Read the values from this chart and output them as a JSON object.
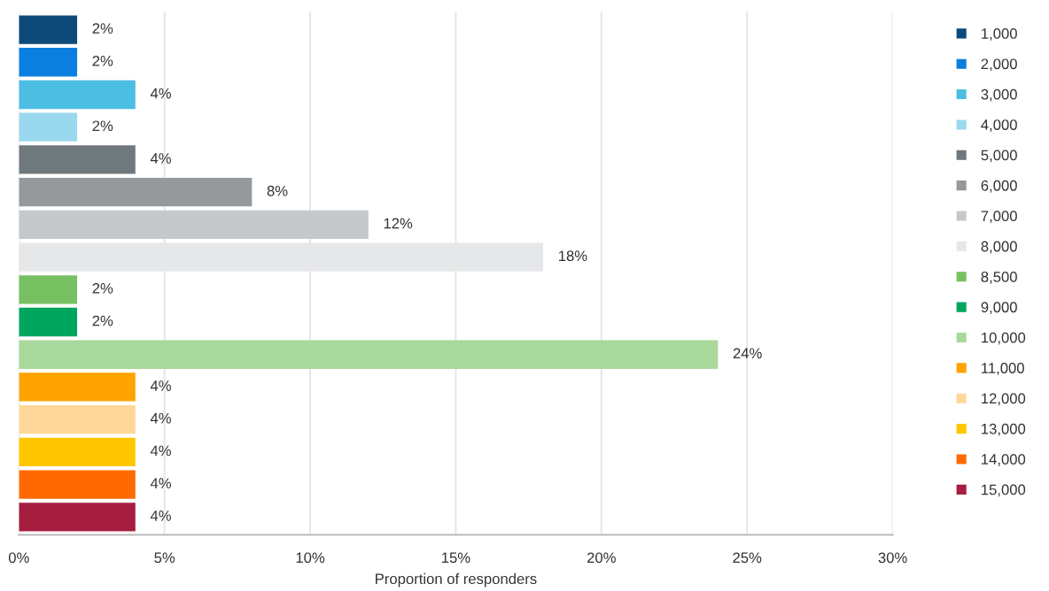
{
  "chart_data": {
    "type": "bar",
    "orientation": "horizontal",
    "xlabel": "Proportion of responders",
    "categories": [
      null,
      null,
      null,
      null,
      null,
      null,
      null,
      null,
      null,
      null,
      null,
      null,
      null,
      null,
      null,
      null
    ],
    "series": [
      {
        "name": "1,000",
        "color": "#0d4a7a",
        "values": [
          2,
          null,
          null,
          null,
          null,
          null,
          null,
          null,
          null,
          null,
          null,
          null,
          null,
          null,
          null,
          null
        ],
        "value_labels": [
          "2%",
          null,
          null,
          null,
          null,
          null,
          null,
          null,
          null,
          null,
          null,
          null,
          null,
          null,
          null,
          null
        ]
      },
      {
        "name": "2,000",
        "color": "#0a7fe0",
        "values": [
          null,
          2,
          null,
          null,
          null,
          null,
          null,
          null,
          null,
          null,
          null,
          null,
          null,
          null,
          null,
          null
        ],
        "value_labels": [
          null,
          "2%",
          null,
          null,
          null,
          null,
          null,
          null,
          null,
          null,
          null,
          null,
          null,
          null,
          null,
          null
        ]
      },
      {
        "name": "3,000",
        "color": "#4cbde3",
        "values": [
          null,
          null,
          4,
          null,
          null,
          null,
          null,
          null,
          null,
          null,
          null,
          null,
          null,
          null,
          null,
          null
        ],
        "value_labels": [
          null,
          null,
          "4%",
          null,
          null,
          null,
          null,
          null,
          null,
          null,
          null,
          null,
          null,
          null,
          null,
          null
        ]
      },
      {
        "name": "4,000",
        "color": "#9ad8ef",
        "values": [
          null,
          null,
          null,
          2,
          null,
          null,
          null,
          null,
          null,
          null,
          null,
          null,
          null,
          null,
          null,
          null
        ],
        "value_labels": [
          null,
          null,
          null,
          "2%",
          null,
          null,
          null,
          null,
          null,
          null,
          null,
          null,
          null,
          null,
          null,
          null
        ]
      },
      {
        "name": "5,000",
        "color": "#6f787d",
        "values": [
          null,
          null,
          null,
          null,
          4,
          null,
          null,
          null,
          null,
          null,
          null,
          null,
          null,
          null,
          null,
          null
        ],
        "value_labels": [
          null,
          null,
          null,
          null,
          "4%",
          null,
          null,
          null,
          null,
          null,
          null,
          null,
          null,
          null,
          null,
          null
        ]
      },
      {
        "name": "6,000",
        "color": "#95999c",
        "values": [
          null,
          null,
          null,
          null,
          null,
          8,
          null,
          null,
          null,
          null,
          null,
          null,
          null,
          null,
          null,
          null
        ],
        "value_labels": [
          null,
          null,
          null,
          null,
          null,
          "8%",
          null,
          null,
          null,
          null,
          null,
          null,
          null,
          null,
          null,
          null
        ]
      },
      {
        "name": "7,000",
        "color": "#c5c8ca",
        "values": [
          null,
          null,
          null,
          null,
          null,
          null,
          12,
          null,
          null,
          null,
          null,
          null,
          null,
          null,
          null,
          null
        ],
        "value_labels": [
          null,
          null,
          null,
          null,
          null,
          null,
          "12%",
          null,
          null,
          null,
          null,
          null,
          null,
          null,
          null,
          null
        ]
      },
      {
        "name": "8,000",
        "color": "#e6e7e8",
        "values": [
          null,
          null,
          null,
          null,
          null,
          null,
          null,
          18,
          null,
          null,
          null,
          null,
          null,
          null,
          null,
          null
        ],
        "value_labels": [
          null,
          null,
          null,
          null,
          null,
          null,
          null,
          "18%",
          null,
          null,
          null,
          null,
          null,
          null,
          null,
          null
        ]
      },
      {
        "name": "8,500",
        "color": "#77c062",
        "values": [
          null,
          null,
          null,
          null,
          null,
          null,
          null,
          null,
          2,
          null,
          null,
          null,
          null,
          null,
          null,
          null
        ],
        "value_labels": [
          null,
          null,
          null,
          null,
          null,
          null,
          null,
          null,
          "2%",
          null,
          null,
          null,
          null,
          null,
          null,
          null
        ]
      },
      {
        "name": "9,000",
        "color": "#00a65e",
        "values": [
          null,
          null,
          null,
          null,
          null,
          null,
          null,
          null,
          null,
          2,
          null,
          null,
          null,
          null,
          null,
          null
        ],
        "value_labels": [
          null,
          null,
          null,
          null,
          null,
          null,
          null,
          null,
          null,
          "2%",
          null,
          null,
          null,
          null,
          null,
          null
        ]
      },
      {
        "name": "10,000",
        "color": "#a9d89c",
        "values": [
          null,
          null,
          null,
          null,
          null,
          null,
          null,
          null,
          null,
          null,
          24,
          null,
          null,
          null,
          null,
          null
        ],
        "value_labels": [
          null,
          null,
          null,
          null,
          null,
          null,
          null,
          null,
          null,
          null,
          "24%",
          null,
          null,
          null,
          null,
          null
        ]
      },
      {
        "name": "11,000",
        "color": "#ffa300",
        "values": [
          null,
          null,
          null,
          null,
          null,
          null,
          null,
          null,
          null,
          null,
          null,
          4,
          null,
          null,
          null,
          null
        ],
        "value_labels": [
          null,
          null,
          null,
          null,
          null,
          null,
          null,
          null,
          null,
          null,
          null,
          "4%",
          null,
          null,
          null,
          null
        ]
      },
      {
        "name": "12,000",
        "color": "#ffd899",
        "values": [
          null,
          null,
          null,
          null,
          null,
          null,
          null,
          null,
          null,
          null,
          null,
          null,
          4,
          null,
          null,
          null
        ],
        "value_labels": [
          null,
          null,
          null,
          null,
          null,
          null,
          null,
          null,
          null,
          null,
          null,
          null,
          "4%",
          null,
          null,
          null
        ]
      },
      {
        "name": "13,000",
        "color": "#ffc600",
        "values": [
          null,
          null,
          null,
          null,
          null,
          null,
          null,
          null,
          null,
          null,
          null,
          null,
          null,
          4,
          null,
          null
        ],
        "value_labels": [
          null,
          null,
          null,
          null,
          null,
          null,
          null,
          null,
          null,
          null,
          null,
          null,
          null,
          "4%",
          null,
          null
        ]
      },
      {
        "name": "14,000",
        "color": "#ff6a00",
        "values": [
          null,
          null,
          null,
          null,
          null,
          null,
          null,
          null,
          null,
          null,
          null,
          null,
          null,
          null,
          4,
          null
        ],
        "value_labels": [
          null,
          null,
          null,
          null,
          null,
          null,
          null,
          null,
          null,
          null,
          null,
          null,
          null,
          null,
          "4%",
          null
        ]
      },
      {
        "name": "15,000",
        "color": "#a51e3f",
        "values": [
          null,
          null,
          null,
          null,
          null,
          null,
          null,
          null,
          null,
          null,
          null,
          null,
          null,
          null,
          null,
          4
        ],
        "value_labels": [
          null,
          null,
          null,
          null,
          null,
          null,
          null,
          null,
          null,
          null,
          null,
          null,
          null,
          null,
          null,
          "4%"
        ]
      }
    ],
    "xlim": [
      0,
      30
    ],
    "xticks": [
      {
        "value": 0,
        "label": "0%"
      },
      {
        "value": 5,
        "label": "5%"
      },
      {
        "value": 10,
        "label": "10%"
      },
      {
        "value": 15,
        "label": "15%"
      },
      {
        "value": 20,
        "label": "20%"
      },
      {
        "value": 25,
        "label": "25%"
      },
      {
        "value": 30,
        "label": "30%"
      }
    ],
    "grid": "x",
    "legend": "right",
    "tick_labels": "x"
  }
}
